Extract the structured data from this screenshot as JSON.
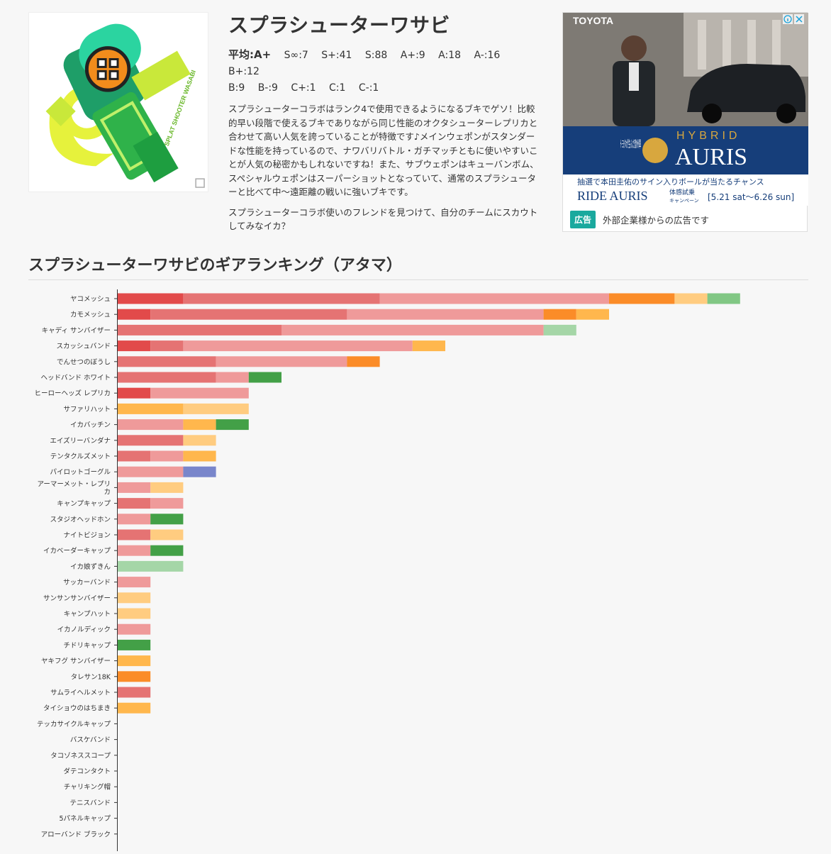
{
  "weapon": {
    "title": "スプラシューターワサビ",
    "image_icon": "splat-shooter-wasabi-icon",
    "image_caption": "SPLAT SHOOTER WASABI",
    "ranks": {
      "average": "平均:A+",
      "items": [
        "S∞:7",
        "S+:41",
        "S:88",
        "A+:9",
        "A:18",
        "A-:16",
        "B+:12",
        "B:9",
        "B-:9",
        "C+:1",
        "C:1",
        "C-:1"
      ]
    },
    "description": [
      "スプラシューターコラボはランク4で使用できるようになるブキでゲソ！比較的早い段階で使えるブキでありながら同じ性能のオクタシューターレプリカと合わせて高い人気を誇っていることが特徴です♪メインウェポンがスタンダードな性能を持っているので、ナワバリバトル・ガチマッチともに使いやすいことが人気の秘密かもしれないですね！また、サブウェポンはキューバンボム、スペシャルウェポンはスーパーショットとなっていて、通常のスプラシューターと比べて中〜遠距離の戦いに強いブキです。",
      "スプラシューターコラボ使いのフレンドを見つけて、自分のチームにスカウトしてみなイカ？"
    ]
  },
  "ad": {
    "brand": "TOYOTA",
    "headline_small": "トヨタが生んだ欧州車",
    "headline_large1": "HYBRID",
    "headline_large2": "AURIS",
    "campaign_text": "抽選で本田圭佑のサイン入りボールが当たるチャンス",
    "ride_text": "RIDE AURIS",
    "ride_sub1": "体感試乗",
    "ride_sub2": "キャンペーン",
    "period": "[5.21 sat〜6.26 sun]",
    "badge": "広告",
    "footnote": "外部企業様からの広告です",
    "info_icon": "info-icon",
    "close_icon": "close-icon"
  },
  "section": {
    "title": "スプラシューターワサビのギアランキング（アタマ）"
  },
  "colors": {
    "S∞": "#e24a4a",
    "S+": "#e57373",
    "S": "#ef9a9a",
    "A+": "#fb8c28",
    "A": "#ffb74d",
    "A-": "#ffcc80",
    "B+": "#43a047",
    "B-": "#81c784",
    "B": "#a5d6a7",
    "C": "#7986cb"
  },
  "chart_data": {
    "type": "bar",
    "stacked": true,
    "orientation": "horizontal",
    "categories": [
      "ヤコメッシュ",
      "カモメッシュ",
      "キャディ サンバイザー",
      "スカッシュバンド",
      "でんせつのぼうし",
      "ヘッドバンド ホワイト",
      "ヒーローヘッズ レプリカ",
      "サファリハット",
      "イカバッチン",
      "エイズリーバンダナ",
      "テンタクルズメット",
      "パイロットゴーグル",
      "アーマーメット・レプリカ",
      "キャンプキャップ",
      "スタジオヘッドホン",
      "ナイトビジョン",
      "イカベーダーキャップ",
      "イカ娘ずきん",
      "サッカーバンド",
      "サンサンサンバイザー",
      "キャンプハット",
      "イカノルディック",
      "チドリキャップ",
      "ヤキフグ サンバイザー",
      "タレサン18K",
      "サムライヘルメット",
      "タイショウのはちまき",
      "テッカサイクルキャップ",
      "バスケバンド",
      "タコゾネススコープ",
      "ダテコンタクト",
      "チャリキング帽",
      "テニスバンド",
      "5パネルキャップ",
      "アローバンド ブラック"
    ],
    "bars": [
      [
        {
          "rank": "S∞",
          "count": 2
        },
        {
          "rank": "S+",
          "count": 6
        },
        {
          "rank": "S",
          "count": 7
        },
        {
          "rank": "A+",
          "count": 2
        },
        {
          "rank": "A-",
          "count": 1
        },
        {
          "rank": "B-",
          "count": 1
        }
      ],
      [
        {
          "rank": "S∞",
          "count": 1
        },
        {
          "rank": "S+",
          "count": 6
        },
        {
          "rank": "S",
          "count": 6
        },
        {
          "rank": "A+",
          "count": 1
        },
        {
          "rank": "A",
          "count": 1
        }
      ],
      [
        {
          "rank": "S+",
          "count": 5
        },
        {
          "rank": "S",
          "count": 8
        },
        {
          "rank": "B",
          "count": 1
        }
      ],
      [
        {
          "rank": "S∞",
          "count": 1
        },
        {
          "rank": "S+",
          "count": 1
        },
        {
          "rank": "S",
          "count": 7
        },
        {
          "rank": "A",
          "count": 1
        }
      ],
      [
        {
          "rank": "S+",
          "count": 3
        },
        {
          "rank": "S",
          "count": 4
        },
        {
          "rank": "A+",
          "count": 1
        }
      ],
      [
        {
          "rank": "S+",
          "count": 3
        },
        {
          "rank": "S",
          "count": 1
        },
        {
          "rank": "B+",
          "count": 1
        }
      ],
      [
        {
          "rank": "S∞",
          "count": 1
        },
        {
          "rank": "S",
          "count": 3
        }
      ],
      [
        {
          "rank": "A",
          "count": 2
        },
        {
          "rank": "A-",
          "count": 2
        }
      ],
      [
        {
          "rank": "S",
          "count": 2
        },
        {
          "rank": "A",
          "count": 1
        },
        {
          "rank": "B+",
          "count": 1
        }
      ],
      [
        {
          "rank": "S+",
          "count": 2
        },
        {
          "rank": "A-",
          "count": 1
        }
      ],
      [
        {
          "rank": "S+",
          "count": 1
        },
        {
          "rank": "S",
          "count": 1
        },
        {
          "rank": "A",
          "count": 1
        }
      ],
      [
        {
          "rank": "S",
          "count": 2
        },
        {
          "rank": "C",
          "count": 1
        }
      ],
      [
        {
          "rank": "S",
          "count": 1
        },
        {
          "rank": "A-",
          "count": 1
        }
      ],
      [
        {
          "rank": "S+",
          "count": 1
        },
        {
          "rank": "S",
          "count": 1
        }
      ],
      [
        {
          "rank": "S",
          "count": 1
        },
        {
          "rank": "B+",
          "count": 1
        }
      ],
      [
        {
          "rank": "S+",
          "count": 1
        },
        {
          "rank": "A-",
          "count": 1
        }
      ],
      [
        {
          "rank": "S",
          "count": 1
        },
        {
          "rank": "B+",
          "count": 1
        }
      ],
      [
        {
          "rank": "B",
          "count": 2
        }
      ],
      [
        {
          "rank": "S",
          "count": 1
        }
      ],
      [
        {
          "rank": "A-",
          "count": 1
        }
      ],
      [
        {
          "rank": "A-",
          "count": 1
        }
      ],
      [
        {
          "rank": "S",
          "count": 1
        }
      ],
      [
        {
          "rank": "B+",
          "count": 1
        }
      ],
      [
        {
          "rank": "A",
          "count": 1
        }
      ],
      [
        {
          "rank": "A+",
          "count": 1
        }
      ],
      [
        {
          "rank": "S+",
          "count": 1
        }
      ],
      [
        {
          "rank": "A",
          "count": 1
        }
      ],
      [],
      [],
      [],
      [],
      [],
      [],
      [],
      []
    ],
    "xlim": [
      0,
      22
    ],
    "grid": false,
    "legend": "none"
  }
}
